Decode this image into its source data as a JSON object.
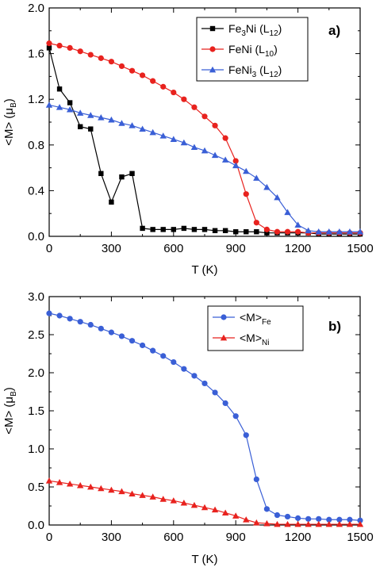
{
  "chart_data": [
    {
      "type": "line",
      "panel": "a)",
      "xlabel": "T (K)",
      "ylabel": "<M> (μB)",
      "xlim": [
        0,
        1500
      ],
      "ylim": [
        0,
        2.0
      ],
      "xticks": [
        "0",
        "300",
        "600",
        "900",
        "1200",
        "1500"
      ],
      "yticks": [
        "0.0",
        "0.4",
        "0.8",
        "1.2",
        "1.6",
        "2.0"
      ],
      "legend_position": "top-right",
      "series": [
        {
          "name": "Fe3Ni (L12)",
          "color": "#000000",
          "marker": "square",
          "x": [
            0,
            50,
            100,
            150,
            200,
            250,
            300,
            350,
            400,
            450,
            500,
            550,
            600,
            650,
            700,
            750,
            800,
            850,
            900,
            950,
            1000,
            1050,
            1100,
            1150,
            1200,
            1250,
            1300,
            1350,
            1400,
            1450,
            1500
          ],
          "y": [
            1.65,
            1.29,
            1.17,
            0.96,
            0.94,
            0.55,
            0.3,
            0.52,
            0.55,
            0.07,
            0.06,
            0.06,
            0.06,
            0.07,
            0.06,
            0.06,
            0.05,
            0.05,
            0.04,
            0.04,
            0.04,
            0.03,
            0.03,
            0.03,
            0.03,
            0.03,
            0.02,
            0.02,
            0.02,
            0.02,
            0.02
          ]
        },
        {
          "name": "FeNi (L10)",
          "color": "#e8221e",
          "marker": "circle",
          "x": [
            0,
            50,
            100,
            150,
            200,
            250,
            300,
            350,
            400,
            450,
            500,
            550,
            600,
            650,
            700,
            750,
            800,
            850,
            900,
            950,
            1000,
            1050,
            1100,
            1150,
            1200,
            1250,
            1300,
            1350,
            1400,
            1450,
            1500
          ],
          "y": [
            1.69,
            1.67,
            1.65,
            1.62,
            1.59,
            1.56,
            1.53,
            1.49,
            1.45,
            1.41,
            1.36,
            1.31,
            1.26,
            1.2,
            1.13,
            1.05,
            0.97,
            0.86,
            0.66,
            0.37,
            0.12,
            0.06,
            0.04,
            0.04,
            0.04,
            0.03,
            0.03,
            0.03,
            0.03,
            0.03,
            0.03
          ]
        },
        {
          "name": "FeNi3 (L12)",
          "color": "#3a5fd6",
          "marker": "triangle",
          "x": [
            0,
            50,
            100,
            150,
            200,
            250,
            300,
            350,
            400,
            450,
            500,
            550,
            600,
            650,
            700,
            750,
            800,
            850,
            900,
            950,
            1000,
            1050,
            1100,
            1150,
            1200,
            1250,
            1300,
            1350,
            1400,
            1450,
            1500
          ],
          "y": [
            1.15,
            1.13,
            1.11,
            1.08,
            1.06,
            1.04,
            1.02,
            0.99,
            0.97,
            0.94,
            0.91,
            0.88,
            0.85,
            0.82,
            0.78,
            0.75,
            0.71,
            0.67,
            0.62,
            0.57,
            0.51,
            0.43,
            0.34,
            0.21,
            0.1,
            0.05,
            0.04,
            0.04,
            0.04,
            0.04,
            0.04
          ]
        }
      ]
    },
    {
      "type": "line",
      "panel": "b)",
      "xlabel": "T (K)",
      "ylabel": "<M> (μB)",
      "xlim": [
        0,
        1500
      ],
      "ylim": [
        0,
        3.0
      ],
      "xticks": [
        "0",
        "300",
        "600",
        "900",
        "1200",
        "1500"
      ],
      "yticks": [
        "0.0",
        "0.5",
        "1.0",
        "1.5",
        "2.0",
        "2.5",
        "3.0"
      ],
      "legend_position": "top-right",
      "series": [
        {
          "name": "<M>Fe",
          "color": "#3a5fd6",
          "marker": "circle",
          "x": [
            0,
            50,
            100,
            150,
            200,
            250,
            300,
            350,
            400,
            450,
            500,
            550,
            600,
            650,
            700,
            750,
            800,
            850,
            900,
            950,
            1000,
            1050,
            1100,
            1150,
            1200,
            1250,
            1300,
            1350,
            1400,
            1450,
            1500
          ],
          "y": [
            2.78,
            2.75,
            2.71,
            2.67,
            2.63,
            2.58,
            2.53,
            2.48,
            2.42,
            2.36,
            2.29,
            2.22,
            2.14,
            2.05,
            1.96,
            1.86,
            1.74,
            1.6,
            1.43,
            1.18,
            0.6,
            0.21,
            0.13,
            0.11,
            0.09,
            0.08,
            0.08,
            0.07,
            0.07,
            0.07,
            0.06
          ]
        },
        {
          "name": "<M>Ni",
          "color": "#e8221e",
          "marker": "triangle",
          "x": [
            0,
            50,
            100,
            150,
            200,
            250,
            300,
            350,
            400,
            450,
            500,
            550,
            600,
            650,
            700,
            750,
            800,
            850,
            900,
            950,
            1000,
            1050,
            1100,
            1150,
            1200,
            1250,
            1300,
            1350,
            1400,
            1450,
            1500
          ],
          "y": [
            0.58,
            0.56,
            0.54,
            0.52,
            0.5,
            0.48,
            0.46,
            0.44,
            0.41,
            0.39,
            0.37,
            0.34,
            0.32,
            0.29,
            0.26,
            0.23,
            0.2,
            0.16,
            0.12,
            0.07,
            0.03,
            0.02,
            0.01,
            0.01,
            0.01,
            0.01,
            0.01,
            0.01,
            0.01,
            0.01,
            0.01
          ]
        }
      ]
    }
  ]
}
